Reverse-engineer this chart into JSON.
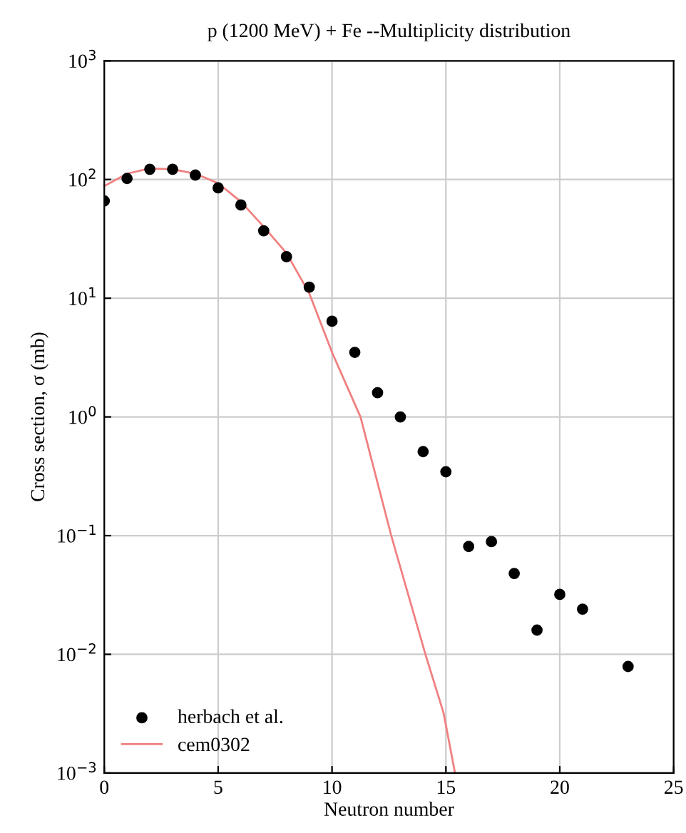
{
  "chart_data": {
    "type": "scatter",
    "title": "p (1200 MeV) + Fe --Multiplicity distribution",
    "xlabel": "Neutron number",
    "ylabel": "Cross section, σ (mb)",
    "log": "y",
    "grid": true,
    "legend": "bottom left",
    "xlim": [
      0,
      25
    ],
    "xticks": [
      0,
      5,
      10,
      15,
      20,
      25
    ],
    "ylim": [
      0.001,
      1000
    ],
    "yticks": [
      {
        "value": 0.001,
        "label": "10$^{−3}$"
      },
      {
        "value": 0.01,
        "label": "10$^{−2}$"
      },
      {
        "value": 0.1,
        "label": "10$^{−1}$"
      },
      {
        "value": 1,
        "label": "10$^{0}$"
      },
      {
        "value": 10,
        "label": "10$^{1}$"
      },
      {
        "value": 100,
        "label": "10$^{2}$"
      },
      {
        "value": 1000,
        "label": "10$^{3}$"
      }
    ],
    "series": [
      {
        "name": "herbach et al.",
        "marker": "circle",
        "color": "#000000",
        "x": [
          0,
          1,
          2,
          3,
          4,
          5,
          6,
          7,
          8,
          9,
          10,
          11,
          12,
          13,
          14,
          15,
          16,
          17,
          18,
          19,
          20,
          21,
          23
        ],
        "values": [
          66,
          102,
          122,
          122,
          109,
          85,
          61,
          37,
          22.4,
          12.4,
          6.4,
          3.5,
          1.6,
          1.0,
          0.51,
          0.345,
          0.081,
          0.089,
          0.048,
          0.016,
          0.032,
          0.024,
          0.0079
        ]
      },
      {
        "name": "cem0302",
        "type": "line",
        "marker": "none",
        "line_style": "solid",
        "color": "#f08080",
        "x": [
          0,
          1,
          2,
          3,
          4,
          5,
          6,
          7,
          8,
          9,
          10,
          11.25,
          12.6,
          14.1,
          14.9,
          15.4
        ],
        "values": [
          88,
          112,
          124,
          122,
          112,
          93,
          65,
          40,
          24,
          11,
          3.5,
          1,
          0.1,
          0.01,
          0.0032,
          0.001
        ]
      }
    ]
  }
}
